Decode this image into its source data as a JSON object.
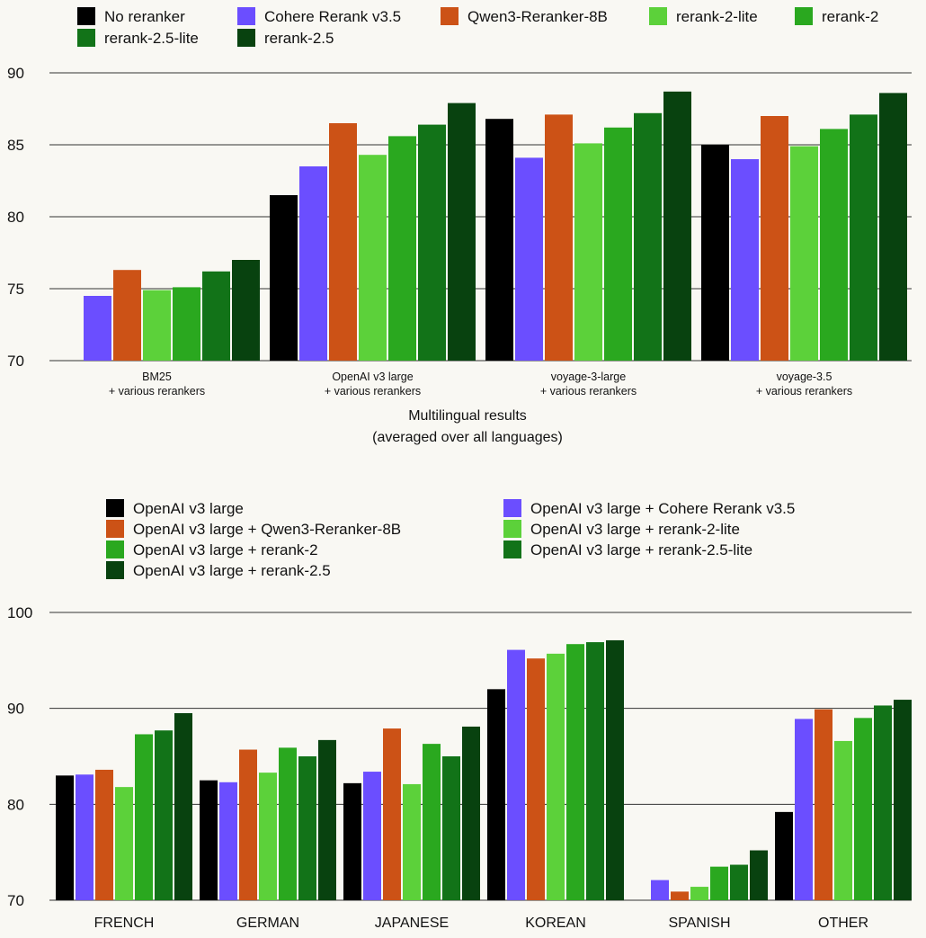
{
  "colors": {
    "no_reranker": "#000000",
    "cohere": "#6b4eff",
    "qwen": "#cc5216",
    "rerank2lite": "#5cd13a",
    "rerank2": "#2aa81f",
    "rerank25lite": "#127318",
    "rerank25": "#08420f",
    "grid": "#333333",
    "background": "#f9f8f3"
  },
  "chart_data": [
    {
      "type": "bar",
      "title": "",
      "xlabel_lines": [
        "Multilingual results",
        "(averaged over all languages)"
      ],
      "ylabel": "",
      "ylim": [
        70,
        90
      ],
      "yticks": [
        70,
        75,
        80,
        85,
        90
      ],
      "grid": true,
      "legend_position": "top",
      "categories": [
        [
          "BM25",
          "+ various rerankers"
        ],
        [
          "OpenAI v3 large",
          "+ various rerankers"
        ],
        [
          "voyage-3-large",
          "+ various rerankers"
        ],
        [
          "voyage-3.5",
          "+ various rerankers"
        ]
      ],
      "series": [
        {
          "name": "No reranker",
          "color_key": "no_reranker",
          "values": [
            null,
            81.5,
            86.8,
            85.0
          ]
        },
        {
          "name": "Cohere Rerank v3.5",
          "color_key": "cohere",
          "values": [
            74.5,
            83.5,
            84.1,
            84.0
          ]
        },
        {
          "name": "Qwen3-Reranker-8B",
          "color_key": "qwen",
          "values": [
            76.3,
            86.5,
            87.1,
            87.0
          ]
        },
        {
          "name": "rerank-2-lite",
          "color_key": "rerank2lite",
          "values": [
            74.9,
            84.3,
            85.1,
            84.9
          ]
        },
        {
          "name": "rerank-2",
          "color_key": "rerank2",
          "values": [
            75.1,
            85.6,
            86.2,
            86.1
          ]
        },
        {
          "name": "rerank-2.5-lite",
          "color_key": "rerank25lite",
          "values": [
            76.2,
            86.4,
            87.2,
            87.1
          ]
        },
        {
          "name": "rerank-2.5",
          "color_key": "rerank25",
          "values": [
            77.0,
            87.9,
            88.7,
            88.6
          ]
        }
      ]
    },
    {
      "type": "bar",
      "title": "",
      "xlabel": "",
      "ylabel": "",
      "ylim": [
        70,
        100
      ],
      "yticks": [
        70,
        80,
        90,
        100
      ],
      "grid": true,
      "legend_position": "top",
      "categories": [
        "FRENCH",
        "GERMAN",
        "JAPANESE",
        "KOREAN",
        "SPANISH",
        "OTHER"
      ],
      "series": [
        {
          "name": "OpenAI v3 large",
          "color_key": "no_reranker",
          "values": [
            83.0,
            82.5,
            82.2,
            92.0,
            68.5,
            79.2
          ]
        },
        {
          "name": "OpenAI v3 large + Cohere Rerank v3.5",
          "color_key": "cohere",
          "values": [
            83.1,
            82.3,
            83.4,
            96.1,
            72.1,
            88.9
          ]
        },
        {
          "name": "OpenAI v3 large + Qwen3-Reranker-8B",
          "color_key": "qwen",
          "values": [
            83.6,
            85.7,
            87.9,
            95.2,
            70.9,
            89.9
          ]
        },
        {
          "name": "OpenAI v3 large + rerank-2-lite",
          "color_key": "rerank2lite",
          "values": [
            81.8,
            83.3,
            82.1,
            95.7,
            71.4,
            86.6
          ]
        },
        {
          "name": "OpenAI v3 large + rerank-2",
          "color_key": "rerank2",
          "values": [
            87.3,
            85.9,
            86.3,
            96.7,
            73.5,
            89.0
          ]
        },
        {
          "name": "OpenAI v3 large + rerank-2.5-lite",
          "color_key": "rerank25lite",
          "values": [
            87.7,
            85.0,
            85.0,
            96.9,
            73.7,
            90.3
          ]
        },
        {
          "name": "OpenAI v3 large + rerank-2.5",
          "color_key": "rerank25",
          "values": [
            89.5,
            86.7,
            88.1,
            97.1,
            75.2,
            90.9
          ]
        }
      ]
    }
  ]
}
